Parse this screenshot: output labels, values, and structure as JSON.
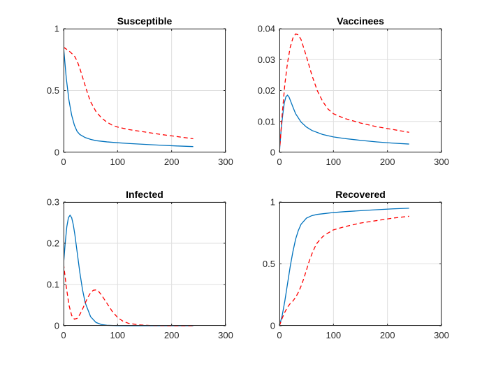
{
  "chart_data": [
    {
      "type": "line",
      "title": "Susceptible",
      "xlabel": "",
      "ylabel": "",
      "xlim": [
        0,
        300
      ],
      "ylim": [
        0,
        1
      ],
      "xticks": [
        0,
        100,
        200,
        300
      ],
      "xtick_labels": [
        "0",
        "100",
        "200",
        "300"
      ],
      "yticks": [
        0,
        0.5,
        1
      ],
      "ytick_labels": [
        "0",
        "0.5",
        "1"
      ],
      "grid": true,
      "series": [
        {
          "name": "solid",
          "color": "#0072bd",
          "dash": "solid",
          "x": [
            0,
            5,
            10,
            15,
            20,
            25,
            30,
            40,
            50,
            60,
            80,
            100,
            120,
            150,
            180,
            210,
            240
          ],
          "y": [
            0.85,
            0.6,
            0.42,
            0.3,
            0.22,
            0.17,
            0.145,
            0.12,
            0.105,
            0.095,
            0.085,
            0.078,
            0.072,
            0.065,
            0.058,
            0.052,
            0.047
          ]
        },
        {
          "name": "dashed",
          "color": "#ff0000",
          "dash": "dashed",
          "x": [
            0,
            10,
            20,
            25,
            30,
            35,
            40,
            45,
            50,
            60,
            70,
            80,
            90,
            100,
            120,
            150,
            180,
            210,
            240
          ],
          "y": [
            0.85,
            0.82,
            0.78,
            0.74,
            0.68,
            0.61,
            0.54,
            0.47,
            0.41,
            0.33,
            0.28,
            0.245,
            0.22,
            0.205,
            0.185,
            0.165,
            0.145,
            0.128,
            0.11
          ]
        }
      ]
    },
    {
      "type": "line",
      "title": "Vaccinees",
      "xlabel": "",
      "ylabel": "",
      "xlim": [
        0,
        300
      ],
      "ylim": [
        0,
        0.04
      ],
      "xticks": [
        0,
        100,
        200,
        300
      ],
      "xtick_labels": [
        "0",
        "100",
        "200",
        "300"
      ],
      "yticks": [
        0,
        0.01,
        0.02,
        0.03,
        0.04
      ],
      "ytick_labels": [
        "0",
        "0.01",
        "0.02",
        "0.03",
        "0.04"
      ],
      "grid": true,
      "series": [
        {
          "name": "solid",
          "color": "#0072bd",
          "dash": "solid",
          "x": [
            0,
            3,
            6,
            9,
            12,
            15,
            18,
            22,
            26,
            30,
            40,
            50,
            60,
            80,
            100,
            120,
            150,
            180,
            210,
            240
          ],
          "y": [
            0,
            0.007,
            0.012,
            0.016,
            0.018,
            0.0185,
            0.0178,
            0.016,
            0.0142,
            0.0125,
            0.0098,
            0.0082,
            0.0071,
            0.0058,
            0.005,
            0.0045,
            0.0039,
            0.0034,
            0.003,
            0.0027
          ]
        },
        {
          "name": "dashed",
          "color": "#ff0000",
          "dash": "dashed",
          "x": [
            0,
            5,
            10,
            15,
            20,
            25,
            30,
            35,
            40,
            50,
            60,
            70,
            80,
            90,
            100,
            120,
            150,
            180,
            210,
            240
          ],
          "y": [
            0,
            0.012,
            0.022,
            0.029,
            0.034,
            0.037,
            0.0383,
            0.038,
            0.0365,
            0.031,
            0.025,
            0.02,
            0.0165,
            0.014,
            0.0125,
            0.011,
            0.0095,
            0.0083,
            0.0074,
            0.0065
          ]
        }
      ]
    },
    {
      "type": "line",
      "title": "Infected",
      "xlabel": "",
      "ylabel": "",
      "xlim": [
        0,
        300
      ],
      "ylim": [
        0,
        0.3
      ],
      "xticks": [
        0,
        100,
        200,
        300
      ],
      "xtick_labels": [
        "0",
        "100",
        "200",
        "300"
      ],
      "yticks": [
        0,
        0.1,
        0.2,
        0.3
      ],
      "ytick_labels": [
        "0",
        "0.1",
        "0.2",
        "0.3"
      ],
      "grid": true,
      "series": [
        {
          "name": "solid",
          "color": "#0072bd",
          "dash": "solid",
          "x": [
            0,
            3,
            6,
            9,
            12,
            15,
            18,
            21,
            25,
            30,
            35,
            40,
            50,
            60,
            70,
            80,
            100,
            120,
            150,
            200,
            240
          ],
          "y": [
            0.15,
            0.2,
            0.24,
            0.262,
            0.268,
            0.262,
            0.245,
            0.22,
            0.18,
            0.13,
            0.088,
            0.056,
            0.022,
            0.008,
            0.003,
            0.0012,
            0.0002,
            0,
            0,
            0,
            0
          ]
        },
        {
          "name": "dashed",
          "color": "#ff0000",
          "dash": "dashed",
          "x": [
            0,
            5,
            10,
            15,
            20,
            25,
            30,
            35,
            40,
            45,
            50,
            55,
            60,
            65,
            70,
            80,
            90,
            100,
            110,
            120,
            140,
            160,
            200,
            240
          ],
          "y": [
            0.15,
            0.095,
            0.05,
            0.025,
            0.016,
            0.018,
            0.027,
            0.04,
            0.055,
            0.069,
            0.08,
            0.086,
            0.087,
            0.083,
            0.075,
            0.055,
            0.035,
            0.02,
            0.011,
            0.006,
            0.002,
            0.0007,
            0,
            0
          ]
        }
      ]
    },
    {
      "type": "line",
      "title": "Recovered",
      "xlabel": "",
      "ylabel": "",
      "xlim": [
        0,
        300
      ],
      "ylim": [
        0,
        1
      ],
      "xticks": [
        0,
        100,
        200,
        300
      ],
      "xtick_labels": [
        "0",
        "100",
        "200",
        "300"
      ],
      "yticks": [
        0,
        0.5,
        1
      ],
      "ytick_labels": [
        "0",
        "0.5",
        "1"
      ],
      "grid": true,
      "series": [
        {
          "name": "solid",
          "color": "#0072bd",
          "dash": "solid",
          "x": [
            0,
            5,
            10,
            15,
            20,
            25,
            30,
            35,
            40,
            50,
            60,
            70,
            80,
            100,
            120,
            150,
            180,
            210,
            240
          ],
          "y": [
            0.0,
            0.08,
            0.2,
            0.34,
            0.48,
            0.6,
            0.7,
            0.77,
            0.82,
            0.87,
            0.89,
            0.9,
            0.905,
            0.915,
            0.922,
            0.93,
            0.938,
            0.945,
            0.95
          ]
        },
        {
          "name": "dashed",
          "color": "#ff0000",
          "dash": "dashed",
          "x": [
            0,
            5,
            10,
            15,
            20,
            25,
            30,
            35,
            40,
            45,
            50,
            55,
            60,
            65,
            70,
            80,
            90,
            100,
            120,
            150,
            180,
            210,
            240
          ],
          "y": [
            0,
            0.06,
            0.11,
            0.15,
            0.18,
            0.2,
            0.23,
            0.27,
            0.32,
            0.38,
            0.45,
            0.52,
            0.58,
            0.63,
            0.67,
            0.72,
            0.75,
            0.775,
            0.8,
            0.83,
            0.85,
            0.87,
            0.885
          ]
        }
      ]
    }
  ]
}
